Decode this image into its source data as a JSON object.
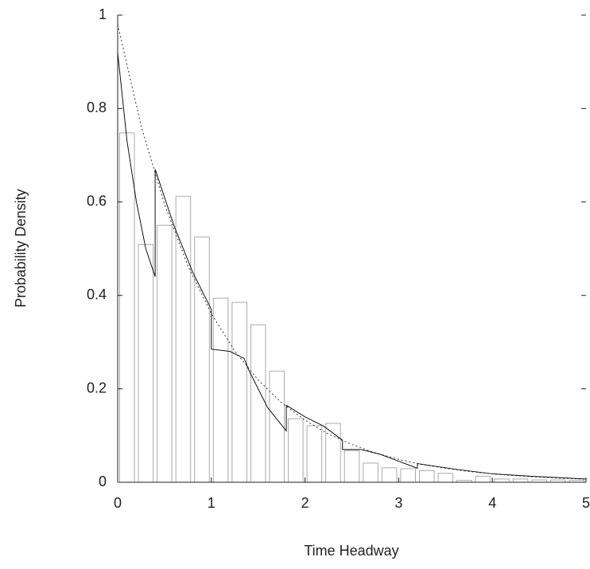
{
  "chart_data": {
    "type": "histogram",
    "xlabel": "Time Headway",
    "ylabel": "Probability Density",
    "bins": [
      0,
      0.2,
      0.4,
      0.6,
      0.8,
      1.0,
      1.2,
      1.4,
      1.6,
      1.8,
      2.0,
      2.2,
      2.4,
      2.6,
      2.8,
      3.0,
      3.2,
      3.4,
      3.6,
      3.8,
      4.0,
      4.2,
      4.4,
      4.6,
      4.8,
      5.0
    ],
    "values": [
      0.748,
      0.509,
      0.55,
      0.612,
      0.525,
      0.394,
      0.385,
      0.337,
      0.238,
      0.136,
      0.121,
      0.126,
      0.068,
      0.041,
      0.031,
      0.029,
      0.025,
      0.019,
      0.004,
      0.013,
      0.007,
      0.007,
      0.005,
      0.005,
      0.004
    ],
    "color": "#aaaaaa",
    "lines": [
      {
        "style": "dotted",
        "color": "#333333",
        "x": [
          0,
          0.25,
          0.5,
          0.75,
          1,
          1.25,
          1.5,
          1.75,
          2,
          2.25,
          2.5,
          2.75,
          3,
          3.25,
          3.5,
          3.75,
          4,
          4.25,
          4.5,
          4.75,
          5
        ],
        "values": [
          0.98,
          0.763,
          0.595,
          0.463,
          0.361,
          0.281,
          0.219,
          0.17,
          0.133,
          0.103,
          0.081,
          0.063,
          0.049,
          0.038,
          0.03,
          0.023,
          0.018,
          0.014,
          0.011,
          0.0085,
          0.0066
        ]
      },
      {
        "style": "solid",
        "color": "#111111",
        "x": [
          0,
          0.1,
          0.2,
          0.3,
          0.4,
          0.4,
          0.6,
          0.8,
          1.0,
          1.0,
          1.2,
          1.35,
          1.4,
          1.6,
          1.8,
          1.8,
          2.0,
          2.2,
          2.4,
          2.4,
          2.6,
          2.8,
          3.0,
          3.2,
          3.2,
          3.6,
          4.0,
          4.4,
          5.0
        ],
        "values": [
          0.92,
          0.73,
          0.6,
          0.5,
          0.44,
          0.67,
          0.55,
          0.45,
          0.37,
          0.285,
          0.28,
          0.265,
          0.24,
          0.16,
          0.11,
          0.165,
          0.14,
          0.12,
          0.09,
          0.07,
          0.07,
          0.06,
          0.045,
          0.03,
          0.04,
          0.028,
          0.018,
          0.013,
          0.007
        ]
      }
    ],
    "xlim": [
      0,
      5
    ],
    "ylim": [
      0,
      1
    ],
    "xticks": [
      0,
      1,
      2,
      3,
      4,
      5
    ],
    "yticks": [
      0,
      0.2,
      0.4,
      0.6,
      0.8,
      1
    ]
  }
}
